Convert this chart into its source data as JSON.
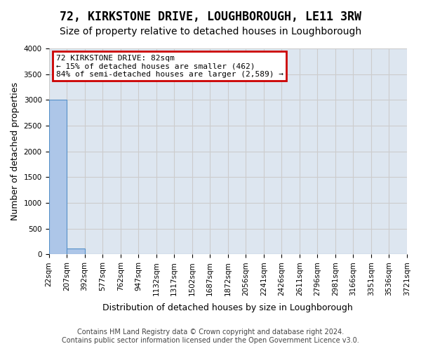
{
  "title": "72, KIRKSTONE DRIVE, LOUGHBOROUGH, LE11 3RW",
  "subtitle": "Size of property relative to detached houses in Loughborough",
  "xlabel": "Distribution of detached houses by size in Loughborough",
  "ylabel": "Number of detached properties",
  "footer_line1": "Contains HM Land Registry data © Crown copyright and database right 2024.",
  "footer_line2": "Contains public sector information licensed under the Open Government Licence v3.0.",
  "bar_values": [
    3000,
    110,
    5,
    2,
    1,
    1,
    0,
    0,
    0,
    0,
    0,
    0,
    0,
    0,
    0,
    0,
    0,
    0,
    0,
    0
  ],
  "x_labels": [
    "22sqm",
    "207sqm",
    "392sqm",
    "577sqm",
    "762sqm",
    "947sqm",
    "1132sqm",
    "1317sqm",
    "1502sqm",
    "1687sqm",
    "1872sqm",
    "2056sqm",
    "2241sqm",
    "2426sqm",
    "2611sqm",
    "2796sqm",
    "2981sqm",
    "3166sqm",
    "3351sqm",
    "3536sqm",
    "3721sqm"
  ],
  "bar_color": "#adc6e8",
  "bar_edge_color": "#5590c8",
  "grid_color": "#cccccc",
  "bg_color": "#dde6f0",
  "ylim": [
    0,
    4000
  ],
  "yticks": [
    0,
    500,
    1000,
    1500,
    2000,
    2500,
    3000,
    3500,
    4000
  ],
  "annotation_text": "72 KIRKSTONE DRIVE: 82sqm\n← 15% of detached houses are smaller (462)\n84% of semi-detached houses are larger (2,589) →",
  "annotation_box_color": "#cc0000",
  "title_fontsize": 12,
  "subtitle_fontsize": 10,
  "axis_fontsize": 9,
  "tick_fontsize": 7.5,
  "footer_fontsize": 7
}
